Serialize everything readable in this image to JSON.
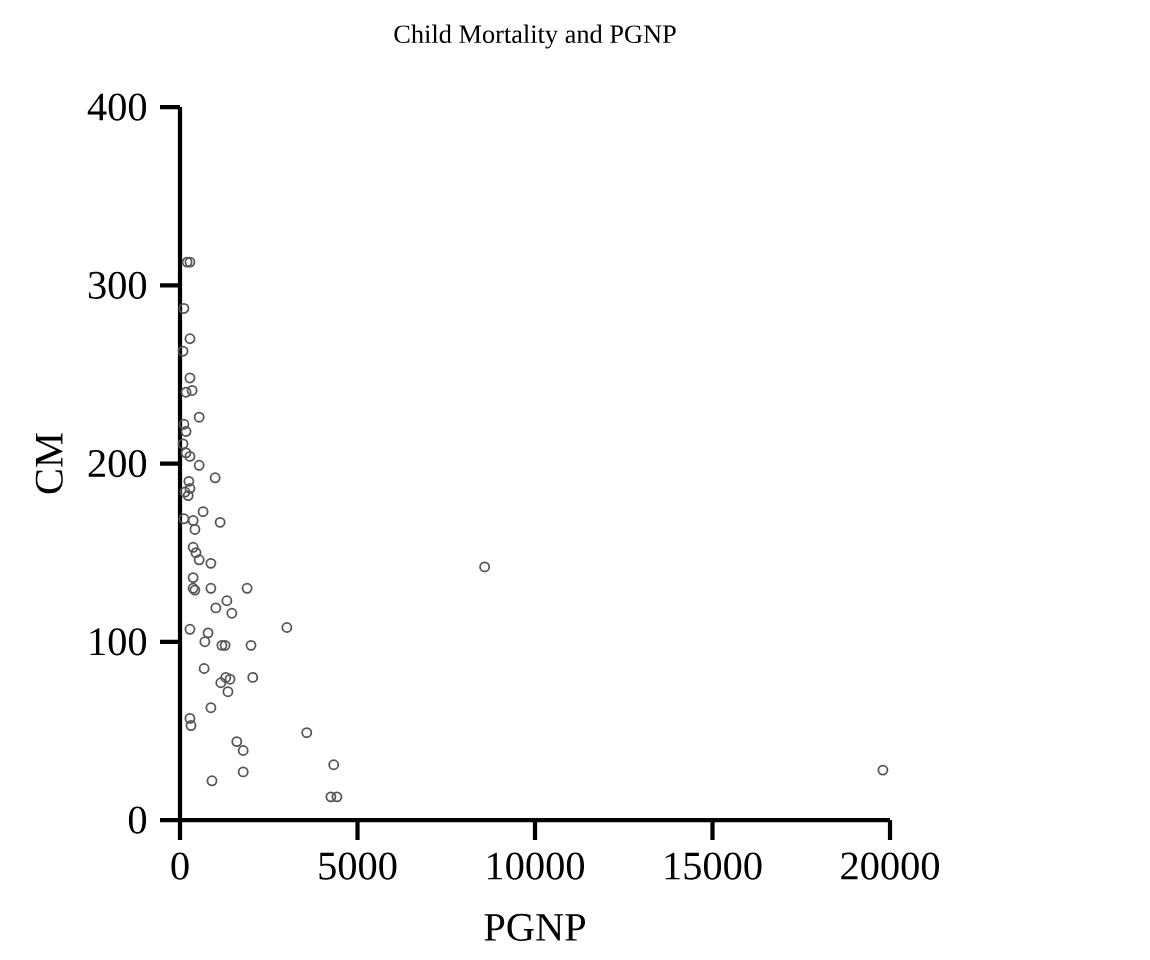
{
  "chart_data": {
    "type": "scatter",
    "title": "Child Mortality and PGNP",
    "xlabel": "PGNP",
    "ylabel": "CM",
    "x": [
      200,
      280,
      110,
      280,
      85,
      280,
      340,
      170,
      540,
      110,
      170,
      85,
      170,
      280,
      540,
      990,
      250,
      280,
      140,
      230,
      650,
      110,
      370,
      1130,
      420,
      370,
      450,
      540,
      870,
      370,
      420,
      370,
      870,
      1890,
      1320,
      1010,
      1460,
      3010,
      280,
      790,
      700,
      1180,
      1270,
      2000,
      680,
      1290,
      1410,
      1150,
      2050,
      1350,
      870,
      280,
      310,
      1600,
      1780,
      3570,
      8580,
      4330,
      1780,
      900,
      4250,
      4420,
      19800
    ],
    "values": [
      313,
      313,
      287,
      270,
      263,
      248,
      241,
      240,
      226,
      222,
      218,
      211,
      206,
      204,
      199,
      192,
      190,
      186,
      184,
      182,
      173,
      169,
      168,
      167,
      163,
      153,
      150,
      146,
      144,
      136,
      129,
      130,
      130,
      130,
      123,
      119,
      116,
      108,
      107,
      105,
      100,
      98,
      98,
      98,
      85,
      80,
      79,
      77,
      80,
      72,
      63,
      57,
      53,
      44,
      39,
      49,
      142,
      31,
      27,
      22,
      13,
      13,
      28
    ],
    "color": "#555555",
    "marker": "circle",
    "xlim": [
      0,
      20000
    ],
    "ylim": [
      0,
      400
    ],
    "xticks": [
      0,
      5000,
      10000,
      15000,
      20000
    ],
    "yticks": [
      0,
      100,
      200,
      300,
      400
    ],
    "grid": false
  }
}
